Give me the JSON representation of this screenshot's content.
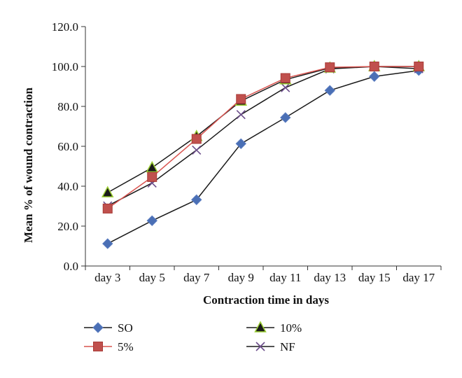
{
  "chart_data": {
    "type": "line",
    "categories": [
      "day 3",
      "day 5",
      "day 7",
      "day 9",
      "day 11",
      "day 13",
      "day 15",
      "day 17"
    ],
    "xlabel": "Contraction time in days",
    "ylabel": "Mean % of wound contraction",
    "ylim": [
      0,
      120
    ],
    "yticks": [
      "0.0",
      "20.0",
      "40.0",
      "60.0",
      "80.0",
      "100.0",
      "120.0"
    ],
    "grid": false,
    "legend_position": "bottom",
    "series": [
      {
        "name": "SO",
        "values": [
          11.2,
          22.7,
          33.2,
          61.3,
          74.4,
          88.0,
          95.0,
          98.0
        ],
        "color": "#4a6fb5",
        "marker": "diamond"
      },
      {
        "name": "5%",
        "values": [
          28.8,
          44.6,
          63.7,
          83.7,
          94.2,
          99.6,
          100.0,
          100.0
        ],
        "color": "#c0504d",
        "marker": "square"
      },
      {
        "name": "10%",
        "values": [
          36.8,
          49.3,
          65.0,
          82.7,
          93.4,
          99.3,
          100.0,
          100.0
        ],
        "color": "#1a1a1a",
        "marker": "triangle"
      },
      {
        "name": "NF",
        "values": [
          30.1,
          41.6,
          58.1,
          75.9,
          89.4,
          98.8,
          100.0,
          98.9
        ],
        "color": "#6b4d8a",
        "marker": "cross"
      }
    ]
  }
}
